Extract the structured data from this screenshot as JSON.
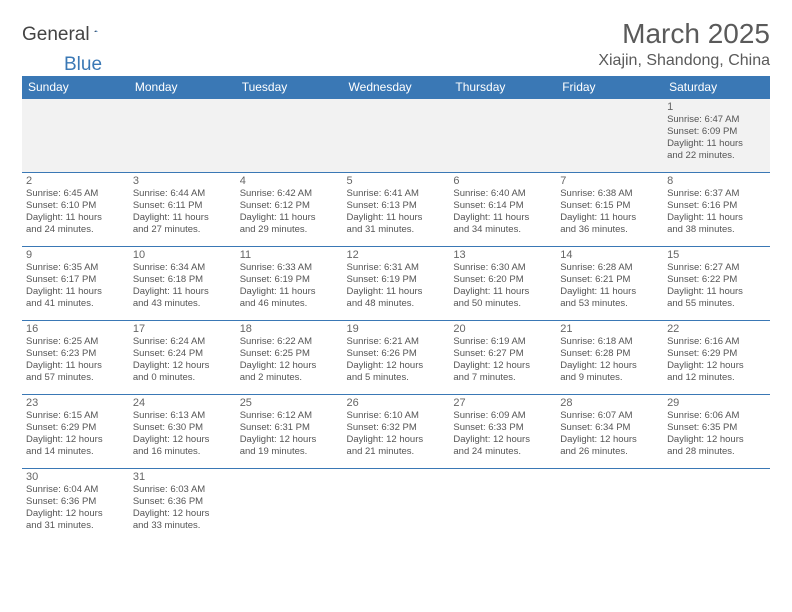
{
  "logo": {
    "general": "General",
    "blue": "Blue"
  },
  "title": "March 2025",
  "location": "Xiajin, Shandong, China",
  "colors": {
    "header_bg": "#3a78b5",
    "header_text": "#ffffff",
    "border": "#3a78b5",
    "gray_bg": "#f2f2f2",
    "text": "#555555"
  },
  "weekdays": [
    "Sunday",
    "Monday",
    "Tuesday",
    "Wednesday",
    "Thursday",
    "Friday",
    "Saturday"
  ],
  "weeks": [
    [
      null,
      null,
      null,
      null,
      null,
      null,
      {
        "n": "1",
        "sr": "Sunrise: 6:47 AM",
        "ss": "Sunset: 6:09 PM",
        "d1": "Daylight: 11 hours",
        "d2": "and 22 minutes."
      }
    ],
    [
      {
        "n": "2",
        "sr": "Sunrise: 6:45 AM",
        "ss": "Sunset: 6:10 PM",
        "d1": "Daylight: 11 hours",
        "d2": "and 24 minutes."
      },
      {
        "n": "3",
        "sr": "Sunrise: 6:44 AM",
        "ss": "Sunset: 6:11 PM",
        "d1": "Daylight: 11 hours",
        "d2": "and 27 minutes."
      },
      {
        "n": "4",
        "sr": "Sunrise: 6:42 AM",
        "ss": "Sunset: 6:12 PM",
        "d1": "Daylight: 11 hours",
        "d2": "and 29 minutes."
      },
      {
        "n": "5",
        "sr": "Sunrise: 6:41 AM",
        "ss": "Sunset: 6:13 PM",
        "d1": "Daylight: 11 hours",
        "d2": "and 31 minutes."
      },
      {
        "n": "6",
        "sr": "Sunrise: 6:40 AM",
        "ss": "Sunset: 6:14 PM",
        "d1": "Daylight: 11 hours",
        "d2": "and 34 minutes."
      },
      {
        "n": "7",
        "sr": "Sunrise: 6:38 AM",
        "ss": "Sunset: 6:15 PM",
        "d1": "Daylight: 11 hours",
        "d2": "and 36 minutes."
      },
      {
        "n": "8",
        "sr": "Sunrise: 6:37 AM",
        "ss": "Sunset: 6:16 PM",
        "d1": "Daylight: 11 hours",
        "d2": "and 38 minutes."
      }
    ],
    [
      {
        "n": "9",
        "sr": "Sunrise: 6:35 AM",
        "ss": "Sunset: 6:17 PM",
        "d1": "Daylight: 11 hours",
        "d2": "and 41 minutes."
      },
      {
        "n": "10",
        "sr": "Sunrise: 6:34 AM",
        "ss": "Sunset: 6:18 PM",
        "d1": "Daylight: 11 hours",
        "d2": "and 43 minutes."
      },
      {
        "n": "11",
        "sr": "Sunrise: 6:33 AM",
        "ss": "Sunset: 6:19 PM",
        "d1": "Daylight: 11 hours",
        "d2": "and 46 minutes."
      },
      {
        "n": "12",
        "sr": "Sunrise: 6:31 AM",
        "ss": "Sunset: 6:19 PM",
        "d1": "Daylight: 11 hours",
        "d2": "and 48 minutes."
      },
      {
        "n": "13",
        "sr": "Sunrise: 6:30 AM",
        "ss": "Sunset: 6:20 PM",
        "d1": "Daylight: 11 hours",
        "d2": "and 50 minutes."
      },
      {
        "n": "14",
        "sr": "Sunrise: 6:28 AM",
        "ss": "Sunset: 6:21 PM",
        "d1": "Daylight: 11 hours",
        "d2": "and 53 minutes."
      },
      {
        "n": "15",
        "sr": "Sunrise: 6:27 AM",
        "ss": "Sunset: 6:22 PM",
        "d1": "Daylight: 11 hours",
        "d2": "and 55 minutes."
      }
    ],
    [
      {
        "n": "16",
        "sr": "Sunrise: 6:25 AM",
        "ss": "Sunset: 6:23 PM",
        "d1": "Daylight: 11 hours",
        "d2": "and 57 minutes."
      },
      {
        "n": "17",
        "sr": "Sunrise: 6:24 AM",
        "ss": "Sunset: 6:24 PM",
        "d1": "Daylight: 12 hours",
        "d2": "and 0 minutes."
      },
      {
        "n": "18",
        "sr": "Sunrise: 6:22 AM",
        "ss": "Sunset: 6:25 PM",
        "d1": "Daylight: 12 hours",
        "d2": "and 2 minutes."
      },
      {
        "n": "19",
        "sr": "Sunrise: 6:21 AM",
        "ss": "Sunset: 6:26 PM",
        "d1": "Daylight: 12 hours",
        "d2": "and 5 minutes."
      },
      {
        "n": "20",
        "sr": "Sunrise: 6:19 AM",
        "ss": "Sunset: 6:27 PM",
        "d1": "Daylight: 12 hours",
        "d2": "and 7 minutes."
      },
      {
        "n": "21",
        "sr": "Sunrise: 6:18 AM",
        "ss": "Sunset: 6:28 PM",
        "d1": "Daylight: 12 hours",
        "d2": "and 9 minutes."
      },
      {
        "n": "22",
        "sr": "Sunrise: 6:16 AM",
        "ss": "Sunset: 6:29 PM",
        "d1": "Daylight: 12 hours",
        "d2": "and 12 minutes."
      }
    ],
    [
      {
        "n": "23",
        "sr": "Sunrise: 6:15 AM",
        "ss": "Sunset: 6:29 PM",
        "d1": "Daylight: 12 hours",
        "d2": "and 14 minutes."
      },
      {
        "n": "24",
        "sr": "Sunrise: 6:13 AM",
        "ss": "Sunset: 6:30 PM",
        "d1": "Daylight: 12 hours",
        "d2": "and 16 minutes."
      },
      {
        "n": "25",
        "sr": "Sunrise: 6:12 AM",
        "ss": "Sunset: 6:31 PM",
        "d1": "Daylight: 12 hours",
        "d2": "and 19 minutes."
      },
      {
        "n": "26",
        "sr": "Sunrise: 6:10 AM",
        "ss": "Sunset: 6:32 PM",
        "d1": "Daylight: 12 hours",
        "d2": "and 21 minutes."
      },
      {
        "n": "27",
        "sr": "Sunrise: 6:09 AM",
        "ss": "Sunset: 6:33 PM",
        "d1": "Daylight: 12 hours",
        "d2": "and 24 minutes."
      },
      {
        "n": "28",
        "sr": "Sunrise: 6:07 AM",
        "ss": "Sunset: 6:34 PM",
        "d1": "Daylight: 12 hours",
        "d2": "and 26 minutes."
      },
      {
        "n": "29",
        "sr": "Sunrise: 6:06 AM",
        "ss": "Sunset: 6:35 PM",
        "d1": "Daylight: 12 hours",
        "d2": "and 28 minutes."
      }
    ],
    [
      {
        "n": "30",
        "sr": "Sunrise: 6:04 AM",
        "ss": "Sunset: 6:36 PM",
        "d1": "Daylight: 12 hours",
        "d2": "and 31 minutes."
      },
      {
        "n": "31",
        "sr": "Sunrise: 6:03 AM",
        "ss": "Sunset: 6:36 PM",
        "d1": "Daylight: 12 hours",
        "d2": "and 33 minutes."
      },
      null,
      null,
      null,
      null,
      null
    ]
  ]
}
